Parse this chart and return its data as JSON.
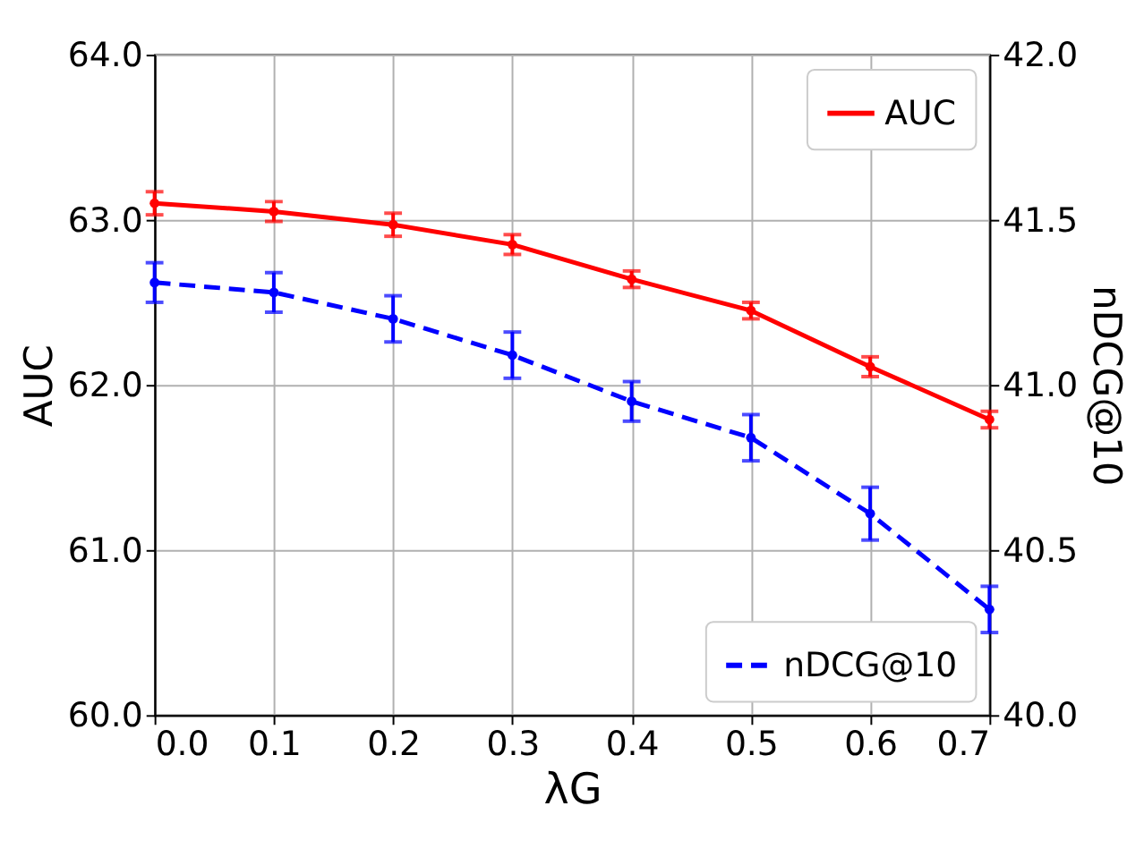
{
  "chart_data": {
    "type": "line",
    "xlabel": "λG",
    "ylabel": "AUC",
    "y2label": "nDCG@10",
    "x": [
      0,
      0.1,
      0.2,
      0.3,
      0.4,
      0.5,
      0.6,
      0.7
    ],
    "series": [
      {
        "name": "AUC",
        "color": "#ff0000",
        "line_style": "solid",
        "marker": "circle",
        "values": [
          63.1,
          63.05,
          62.97,
          62.85,
          62.64,
          62.45,
          62.11,
          61.79
        ],
        "errors": [
          0.07,
          0.06,
          0.07,
          0.06,
          0.05,
          0.05,
          0.06,
          0.05
        ]
      },
      {
        "name": "nDCG@10",
        "color": "#0000ff",
        "line_style": "dashed",
        "marker": "circle",
        "axis": "y2",
        "values": [
          41.31,
          41.28,
          41.2,
          41.09,
          40.95,
          40.84,
          40.61,
          40.32
        ],
        "errors": [
          0.06,
          0.06,
          0.07,
          0.07,
          0.06,
          0.07,
          0.08,
          0.07
        ]
      }
    ],
    "xlim": [
      0,
      0.7
    ],
    "xticks": [
      {
        "value": 0,
        "label": "0.0"
      },
      0.1,
      0.2,
      0.3,
      0.4,
      0.5,
      0.6,
      0.7
    ],
    "ylim": [
      60,
      64
    ],
    "yticks": [
      {
        "value": 60,
        "label": "60.0"
      },
      {
        "value": 61,
        "label": "61.0"
      },
      {
        "value": 62,
        "label": "62.0"
      },
      {
        "value": 63,
        "label": "63.0"
      },
      {
        "value": 64,
        "label": "64.0"
      }
    ],
    "y2lim": [
      40,
      42
    ],
    "y2ticks": [
      {
        "value": 40,
        "label": "40.0"
      },
      40.5,
      {
        "value": 41,
        "label": "41.0"
      },
      41.5,
      {
        "value": 42,
        "label": "42.0"
      }
    ],
    "grid": true,
    "legend": [
      "top right",
      "bottom right"
    ]
  }
}
